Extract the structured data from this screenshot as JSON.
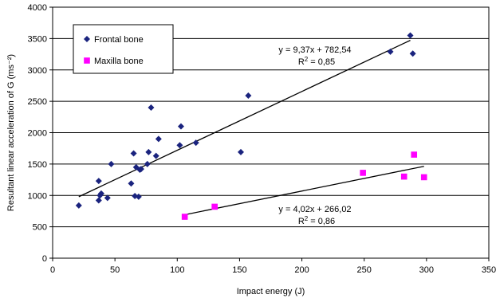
{
  "chart_data": {
    "type": "scatter",
    "title": "",
    "xlabel": "Impact energy (J)",
    "ylabel": "Resultant linear acceleration of G (ms⁻²)",
    "xlim": [
      0,
      350
    ],
    "ylim": [
      0,
      4000
    ],
    "x_ticks": [
      0,
      50,
      100,
      150,
      200,
      250,
      300,
      350
    ],
    "y_ticks": [
      0,
      500,
      1000,
      1500,
      2000,
      2500,
      3000,
      3500,
      4000
    ],
    "x_tick_labels": [
      "0",
      "50",
      "100",
      "150",
      "200",
      "250",
      "300",
      "350"
    ],
    "y_tick_labels": [
      "0",
      "500",
      "1000",
      "1500",
      "2000",
      "2500",
      "3000",
      "3500",
      "4000"
    ],
    "grid": "horizontal",
    "legend_position": "top-left",
    "series": [
      {
        "name": "Frontal bone",
        "marker": "diamond",
        "color": "#1a237e",
        "points": [
          [
            21,
            840
          ],
          [
            37,
            920
          ],
          [
            37,
            1230
          ],
          [
            38,
            1000
          ],
          [
            39,
            1030
          ],
          [
            44,
            960
          ],
          [
            47,
            1500
          ],
          [
            63,
            1190
          ],
          [
            65,
            1670
          ],
          [
            66,
            990
          ],
          [
            67,
            1450
          ],
          [
            69,
            980
          ],
          [
            70,
            1410
          ],
          [
            71,
            1420
          ],
          [
            76,
            1500
          ],
          [
            77,
            1690
          ],
          [
            79,
            2400
          ],
          [
            83,
            1630
          ],
          [
            85,
            1900
          ],
          [
            102,
            1800
          ],
          [
            103,
            2100
          ],
          [
            115,
            1840
          ],
          [
            151,
            1690
          ],
          [
            157,
            2590
          ],
          [
            271,
            3290
          ],
          [
            287,
            3550
          ],
          [
            289,
            3260
          ]
        ],
        "trendline": {
          "x_range": [
            21,
            287
          ],
          "slope": 9.37,
          "intercept": 782.54,
          "equation": "y = 9,37x + 782,54",
          "r2_prefix": "R",
          "r2_exponent": "2",
          "r2_value": " = 0,85"
        }
      },
      {
        "name": "Maxilla bone",
        "marker": "square",
        "color": "#ff00ff",
        "points": [
          [
            106,
            660
          ],
          [
            130,
            820
          ],
          [
            249,
            1360
          ],
          [
            282,
            1300
          ],
          [
            290,
            1650
          ],
          [
            298,
            1290
          ]
        ],
        "trendline": {
          "x_range": [
            106,
            298
          ],
          "slope": 4.02,
          "intercept": 266.02,
          "equation": "y = 4,02x + 266,02",
          "r2_prefix": "R",
          "r2_exponent": "2",
          "r2_value": " = 0,86"
        }
      }
    ]
  }
}
